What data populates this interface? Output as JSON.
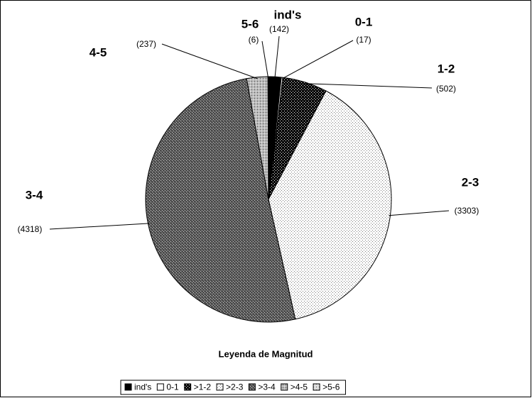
{
  "chart_data": {
    "type": "pie",
    "categories": [
      "ind's",
      "0-1",
      "1-2",
      "2-3",
      "3-4",
      "4-5",
      "5-6"
    ],
    "values": [
      142,
      17,
      502,
      3303,
      4318,
      237,
      6
    ],
    "value_labels": [
      "(142)",
      "(17)",
      "(502)",
      "(3303)",
      "(4318)",
      "(237)",
      "(6)"
    ],
    "legend_title": "Leyenda de Magnitud",
    "legend_labels": [
      "ind's",
      "0-1",
      ">1-2",
      ">2-3",
      ">3-4",
      ">4-5",
      ">5-6"
    ]
  }
}
